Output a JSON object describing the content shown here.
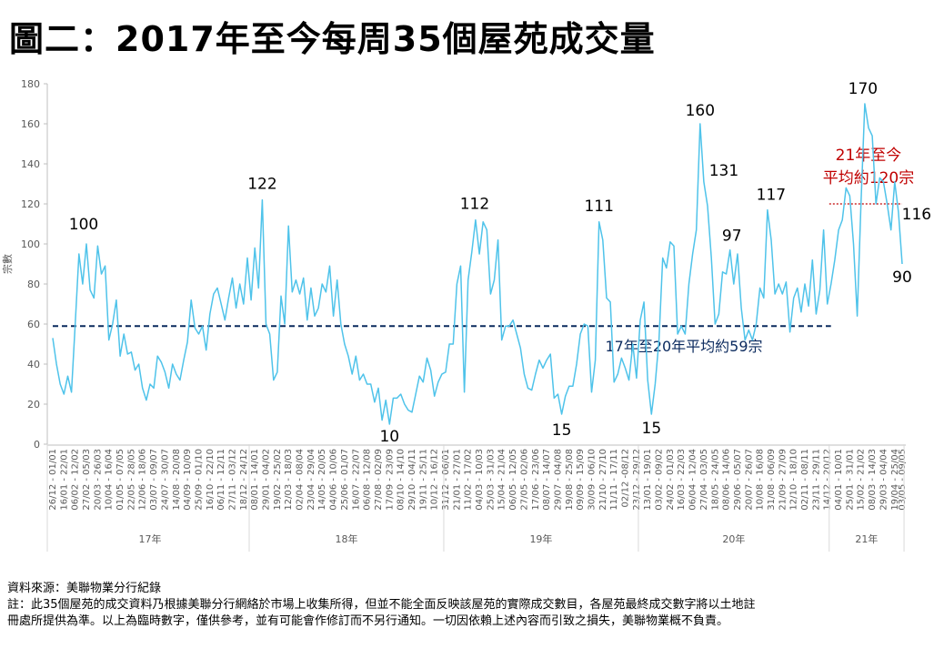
{
  "title": "圖二：2017年至今每周35個屋苑成交量",
  "footer": {
    "source": "資料來源：美聯物業分行紀錄",
    "note_line1": "註：此35個屋苑的成交資料乃根據美聯分行網絡於市場上收集所得，但並不能全面反映該屋苑的實際成交數目，各屋苑最終成交數字將以土地註",
    "note_line2": "冊處所提供為準。以上為臨時數字，僅供參考，並有可能會作修訂而不另行通知。一切因依賴上述內容而引致之損失，美聯物業概不負責。"
  },
  "chart_data": {
    "type": "line",
    "title": "圖二：2017年至今每周35個屋苑成交量",
    "ylabel": "宗數",
    "xlabel": "",
    "ylim": [
      0,
      180
    ],
    "yticks": [
      0,
      20,
      40,
      60,
      80,
      100,
      120,
      140,
      160,
      180
    ],
    "colors": {
      "line": "#4fc3ea",
      "avg_17_20": "#0b2a5e",
      "avg_21": "#c00000"
    },
    "series": [
      {
        "name": "每周成交量",
        "values": [
          53,
          40,
          30,
          25,
          34,
          26,
          60,
          95,
          80,
          100,
          77,
          73,
          99,
          85,
          89,
          52,
          60,
          72,
          44,
          55,
          45,
          46,
          37,
          40,
          28,
          22,
          30,
          28,
          44,
          41,
          36,
          28,
          40,
          35,
          32,
          42,
          51,
          72,
          58,
          55,
          59,
          47,
          65,
          75,
          78,
          70,
          62,
          73,
          83,
          68,
          80,
          70,
          93,
          72,
          98,
          78,
          122,
          60,
          55,
          32,
          36,
          74,
          60,
          109,
          76,
          82,
          75,
          83,
          62,
          78,
          64,
          68,
          80,
          76,
          89,
          64,
          82,
          60,
          50,
          44,
          35,
          44,
          32,
          35,
          30,
          30,
          21,
          28,
          12,
          22,
          10,
          23,
          23,
          25,
          20,
          17,
          16,
          25,
          34,
          31,
          43,
          37,
          24,
          31,
          35,
          36,
          50,
          50,
          80,
          89,
          26,
          82,
          96,
          112,
          95,
          111,
          107,
          75,
          82,
          102,
          52,
          59,
          59,
          62,
          55,
          48,
          35,
          28,
          27,
          35,
          42,
          38,
          42,
          45,
          23,
          25,
          15,
          24,
          29,
          29,
          40,
          55,
          60,
          59,
          26,
          42,
          111,
          102,
          73,
          71,
          31,
          35,
          43,
          38,
          32,
          50,
          33,
          62,
          71,
          32,
          15,
          30,
          52,
          93,
          88,
          101,
          99,
          55,
          59,
          55,
          80,
          95,
          107,
          160,
          131,
          119,
          93,
          60,
          65,
          86,
          85,
          97,
          80,
          95,
          68,
          52,
          57,
          52,
          60,
          78,
          73,
          117,
          102,
          75,
          80,
          75,
          81,
          56,
          73,
          78,
          66,
          80,
          69,
          92,
          65,
          77,
          107,
          70,
          80,
          92,
          107,
          112,
          128,
          124,
          100,
          64,
          120,
          170,
          158,
          154,
          120,
          133,
          131,
          120,
          107,
          131,
          116,
          90
        ]
      }
    ],
    "tick_labels": [
      "26/12 - 01/01",
      "16/01 - 22/01",
      "06/02 - 12/02",
      "27/02 - 05/03",
      "20/03 - 26/03",
      "10/04 - 16/04",
      "01/05 - 07/05",
      "22/05 - 28/05",
      "12/06 - 18/06",
      "03/07 - 09/07",
      "24/07 - 30/07",
      "14/08 - 20/08",
      "04/09 - 10/09",
      "25/09 - 01/10",
      "16/10 - 22/10",
      "06/11 - 12/11",
      "27/11 - 03/12",
      "18/12 - 24/12",
      "08/01 - 14/01",
      "29/01 - 04/02",
      "19/02 - 25/02",
      "12/03 - 18/03",
      "02/04 - 08/04",
      "23/04 - 29/04",
      "14/05 - 20/05",
      "04/06 - 10/06",
      "25/06 - 01/07",
      "16/07 - 22/07",
      "06/08 - 12/08",
      "27/08 - 02/09",
      "17/09 - 23/09",
      "08/10 - 14/10",
      "29/10 - 04/11",
      "19/11 - 25/11",
      "10/12 - 16/12",
      "31/12 - 06/01",
      "21/01 - 27/01",
      "11/02 - 17/02",
      "04/03 - 10/03",
      "25/03 - 31/03",
      "15/04 - 21/04",
      "06/05 - 12/05",
      "27/05 - 02/06",
      "17/06 - 23/06",
      "08/07 - 14/07",
      "29/07 - 04/08",
      "19/08 - 25/08",
      "09/09 - 15/09",
      "30/09 - 06/10",
      "21/10 - 27/10",
      "11/11 - 17/11",
      "02/12 -08/12",
      "23/12 - 29/12",
      "13/01 - 19/01",
      "03/02 - 09/02",
      "24/02 - 01/03",
      "16/03 - 22/03",
      "06/04 - 12/04",
      "27/04 - 03/05",
      "18/05 - 24/05",
      "08/06 - 14/06",
      "29/06 - 05/07",
      "20/07 - 26/07",
      "10/08 - 16/08",
      "31/08 - 06/09",
      "21/09 - 27/09",
      "12/10 - 18/10",
      "02/11 - 08/11",
      "23/11 - 29/11",
      "14/12 - 20/12",
      "04/01 - 10/01",
      "25/01 - 31/01",
      "15/02 - 21/02",
      "08/03 - 14/03",
      "29/03 - 04/04",
      "19/04 - 25/04",
      "03/05 - 09/05"
    ],
    "year_groups": [
      {
        "label": "17年",
        "start_week": 0,
        "end_week": 52
      },
      {
        "label": "18年",
        "start_week": 53,
        "end_week": 104
      },
      {
        "label": "19年",
        "start_week": 105,
        "end_week": 156
      },
      {
        "label": "20年",
        "start_week": 157,
        "end_week": 207
      },
      {
        "label": "21年",
        "start_week": 208,
        "end_week": 227
      }
    ],
    "reference_lines": [
      {
        "label": "17年至20年平均約59宗",
        "value": 59,
        "start_week": 0,
        "end_week": 207
      },
      {
        "label_line1": "21年至今",
        "label_line2": "平均約120宗",
        "value": 120,
        "start_week": 208,
        "end_week": 227
      }
    ],
    "annotations": [
      {
        "text": "100",
        "week": 9
      },
      {
        "text": "122",
        "week": 56
      },
      {
        "text": "10",
        "week": 90
      },
      {
        "text": "112",
        "week": 113
      },
      {
        "text": "15",
        "week": 136
      },
      {
        "text": "111",
        "week": 146
      },
      {
        "text": "15",
        "week": 160
      },
      {
        "text": "160",
        "week": 173
      },
      {
        "text": "131",
        "week": 174
      },
      {
        "text": "97",
        "week": 181
      },
      {
        "text": "117",
        "week": 191
      },
      {
        "text": "170",
        "week": 217
      },
      {
        "text": "116",
        "week": 226
      },
      {
        "text": "90",
        "week": 227
      }
    ],
    "grid": false,
    "legend": "none"
  }
}
